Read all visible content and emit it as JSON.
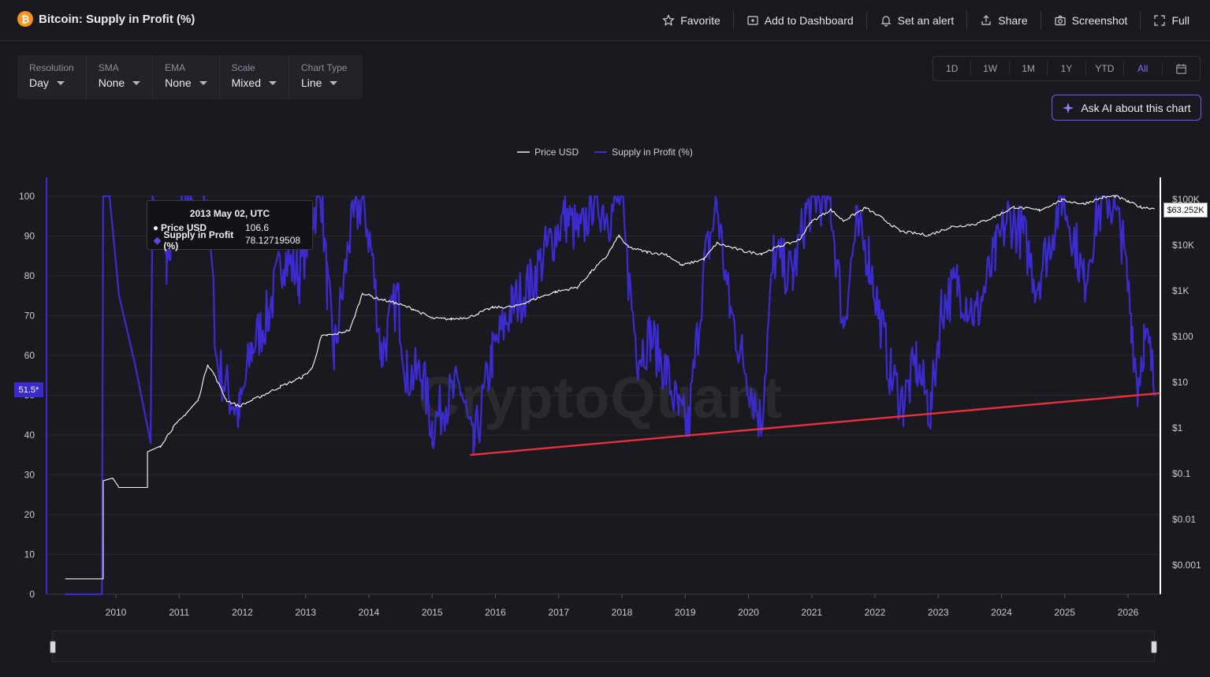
{
  "header": {
    "logo_symbol": "₿",
    "title": "Bitcoin: Supply in Profit (%)",
    "actions": [
      {
        "label": "Favorite",
        "icon": "star-icon"
      },
      {
        "label": "Add to Dashboard",
        "icon": "add-dashboard-icon"
      },
      {
        "label": "Set an alert",
        "icon": "bell-icon"
      },
      {
        "label": "Share",
        "icon": "share-icon"
      },
      {
        "label": "Screenshot",
        "icon": "camera-icon"
      },
      {
        "label": "Full",
        "icon": "fullscreen-icon"
      }
    ]
  },
  "controls": [
    {
      "label": "Resolution",
      "value": "Day"
    },
    {
      "label": "SMA",
      "value": "None"
    },
    {
      "label": "EMA",
      "value": "None"
    },
    {
      "label": "Scale",
      "value": "Mixed"
    },
    {
      "label": "Chart Type",
      "value": "Line"
    }
  ],
  "ranges": [
    "1D",
    "1W",
    "1M",
    "1Y",
    "YTD",
    "All"
  ],
  "active_range": "All",
  "ask_ai_label": "Ask AI about this chart",
  "tooltip": {
    "title": "2013 May 02, UTC",
    "price_label": "Price USD",
    "price_value": "106.6",
    "supply_label": "Supply in Profit (%)",
    "supply_value": "78.12719508"
  },
  "badges": {
    "left_current": "51.5*",
    "right_current": "$63.252K"
  },
  "watermark": "CryptoQuant",
  "colors": {
    "supply": "#3c2bd0",
    "price": "#ffffff",
    "trendline": "#e8313a",
    "accent": "#7d6cff"
  },
  "navigator_labels": [
    "2010",
    "2012",
    "2014",
    "2016",
    "2018",
    "2020",
    "2022",
    "2024",
    "2026"
  ],
  "chart_data": {
    "type": "line",
    "title": "Bitcoin: Supply in Profit (%)",
    "legend_placement": "top-center",
    "grid": true,
    "x_ticks": [
      "2010",
      "2011",
      "2012",
      "2013",
      "2014",
      "2015",
      "2016",
      "2017",
      "2018",
      "2019",
      "2020",
      "2021",
      "2022",
      "2023",
      "2024",
      "2025",
      "2026"
    ],
    "y_left": {
      "ticks": [
        "0",
        "10",
        "20",
        "30",
        "40",
        "50",
        "60",
        "70",
        "80",
        "90",
        "100"
      ],
      "range": [
        0,
        100
      ]
    },
    "y_right": {
      "ticks": [
        "$0.001",
        "$0.01",
        "$0.1",
        "$1",
        "$10",
        "$100",
        "$1K",
        "$10K",
        "$100K"
      ],
      "scale": "log",
      "range": [
        0.001,
        100000
      ]
    },
    "series": [
      {
        "name": "Price USD",
        "axis": "right",
        "points": [
          [
            2009.2,
            0.0005
          ],
          [
            2009.8,
            0.0005
          ],
          [
            2009.8,
            0.07
          ],
          [
            2009.95,
            0.08
          ],
          [
            2010.05,
            0.05
          ],
          [
            2010.5,
            0.05
          ],
          [
            2010.5,
            0.3
          ],
          [
            2010.7,
            0.4
          ],
          [
            2010.9,
            1.0
          ],
          [
            2011.1,
            2.0
          ],
          [
            2011.3,
            4
          ],
          [
            2011.45,
            25
          ],
          [
            2011.55,
            15
          ],
          [
            2011.75,
            4
          ],
          [
            2011.95,
            3
          ],
          [
            2012.3,
            5
          ],
          [
            2012.6,
            8
          ],
          [
            2012.95,
            13
          ],
          [
            2013.1,
            20
          ],
          [
            2013.25,
            100
          ],
          [
            2013.34,
            106.6
          ],
          [
            2013.45,
            110
          ],
          [
            2013.7,
            140
          ],
          [
            2013.9,
            900
          ],
          [
            2014.1,
            700
          ],
          [
            2014.4,
            550
          ],
          [
            2014.7,
            400
          ],
          [
            2015.0,
            250
          ],
          [
            2015.3,
            240
          ],
          [
            2015.6,
            270
          ],
          [
            2015.95,
            430
          ],
          [
            2016.3,
            450
          ],
          [
            2016.6,
            650
          ],
          [
            2016.95,
            950
          ],
          [
            2017.3,
            1200
          ],
          [
            2017.5,
            2500
          ],
          [
            2017.75,
            5500
          ],
          [
            2017.95,
            16000
          ],
          [
            2018.1,
            9000
          ],
          [
            2018.4,
            7000
          ],
          [
            2018.7,
            6300
          ],
          [
            2018.95,
            3600
          ],
          [
            2019.3,
            5000
          ],
          [
            2019.5,
            11000
          ],
          [
            2019.95,
            7200
          ],
          [
            2020.2,
            6500
          ],
          [
            2020.5,
            9500
          ],
          [
            2020.8,
            13000
          ],
          [
            2021.0,
            33000
          ],
          [
            2021.3,
            60000
          ],
          [
            2021.5,
            34000
          ],
          [
            2021.85,
            65000
          ],
          [
            2022.1,
            40000
          ],
          [
            2022.4,
            20000
          ],
          [
            2022.85,
            16500
          ],
          [
            2023.2,
            25000
          ],
          [
            2023.6,
            29000
          ],
          [
            2023.9,
            42000
          ],
          [
            2024.2,
            68000
          ],
          [
            2024.6,
            58000
          ],
          [
            2024.95,
            96000
          ],
          [
            2025.3,
            80000
          ],
          [
            2025.6,
            110000
          ],
          [
            2025.8,
            118000
          ],
          [
            2026.0,
            90000
          ],
          [
            2026.2,
            68000
          ],
          [
            2026.42,
            63252
          ]
        ]
      },
      {
        "name": "Supply in Profit (%)",
        "axis": "left",
        "points": [
          [
            2009.2,
            0
          ],
          [
            2009.78,
            0
          ],
          [
            2009.8,
            100
          ],
          [
            2009.9,
            100
          ],
          [
            2010.05,
            75
          ],
          [
            2010.3,
            58
          ],
          [
            2010.55,
            38
          ],
          [
            2010.58,
            100
          ],
          [
            2010.8,
            85
          ],
          [
            2011.1,
            100
          ],
          [
            2011.3,
            90
          ],
          [
            2011.45,
            100
          ],
          [
            2011.6,
            58
          ],
          [
            2011.8,
            50
          ],
          [
            2011.95,
            45
          ],
          [
            2012.15,
            62
          ],
          [
            2012.4,
            70
          ],
          [
            2012.65,
            85
          ],
          [
            2012.9,
            80
          ],
          [
            2013.1,
            95
          ],
          [
            2013.25,
            100
          ],
          [
            2013.34,
            78
          ],
          [
            2013.45,
            60
          ],
          [
            2013.7,
            90
          ],
          [
            2013.9,
            100
          ],
          [
            2014.05,
            85
          ],
          [
            2014.2,
            60
          ],
          [
            2014.45,
            75
          ],
          [
            2014.6,
            55
          ],
          [
            2014.85,
            55
          ],
          [
            2015.0,
            42
          ],
          [
            2015.2,
            48
          ],
          [
            2015.45,
            52
          ],
          [
            2015.65,
            36
          ],
          [
            2015.95,
            60
          ],
          [
            2016.25,
            72
          ],
          [
            2016.55,
            78
          ],
          [
            2016.85,
            88
          ],
          [
            2017.1,
            95
          ],
          [
            2017.35,
            90
          ],
          [
            2017.55,
            100
          ],
          [
            2017.8,
            95
          ],
          [
            2017.98,
            100
          ],
          [
            2018.1,
            80
          ],
          [
            2018.25,
            60
          ],
          [
            2018.45,
            65
          ],
          [
            2018.7,
            56
          ],
          [
            2018.9,
            45
          ],
          [
            2019.05,
            42
          ],
          [
            2019.3,
            82
          ],
          [
            2019.5,
            98
          ],
          [
            2019.7,
            72
          ],
          [
            2019.9,
            60
          ],
          [
            2020.2,
            43
          ],
          [
            2020.4,
            85
          ],
          [
            2020.7,
            80
          ],
          [
            2020.9,
            95
          ],
          [
            2021.05,
            100
          ],
          [
            2021.3,
            98
          ],
          [
            2021.5,
            68
          ],
          [
            2021.7,
            92
          ],
          [
            2021.9,
            85
          ],
          [
            2022.05,
            72
          ],
          [
            2022.25,
            55
          ],
          [
            2022.45,
            48
          ],
          [
            2022.65,
            58
          ],
          [
            2022.88,
            46
          ],
          [
            2023.05,
            72
          ],
          [
            2023.3,
            78
          ],
          [
            2023.6,
            70
          ],
          [
            2023.9,
            85
          ],
          [
            2024.1,
            95
          ],
          [
            2024.35,
            90
          ],
          [
            2024.55,
            78
          ],
          [
            2024.75,
            88
          ],
          [
            2024.95,
            100
          ],
          [
            2025.15,
            90
          ],
          [
            2025.3,
            78
          ],
          [
            2025.5,
            95
          ],
          [
            2025.7,
            100
          ],
          [
            2025.9,
            90
          ],
          [
            2026.05,
            70
          ],
          [
            2026.15,
            52
          ],
          [
            2026.25,
            64
          ],
          [
            2026.35,
            60
          ],
          [
            2026.42,
            51.5
          ]
        ]
      }
    ],
    "annotations": [
      {
        "type": "trendline",
        "axis": "left",
        "from": [
          2015.6,
          35
        ],
        "to": [
          2026.5,
          50.5
        ]
      }
    ]
  }
}
